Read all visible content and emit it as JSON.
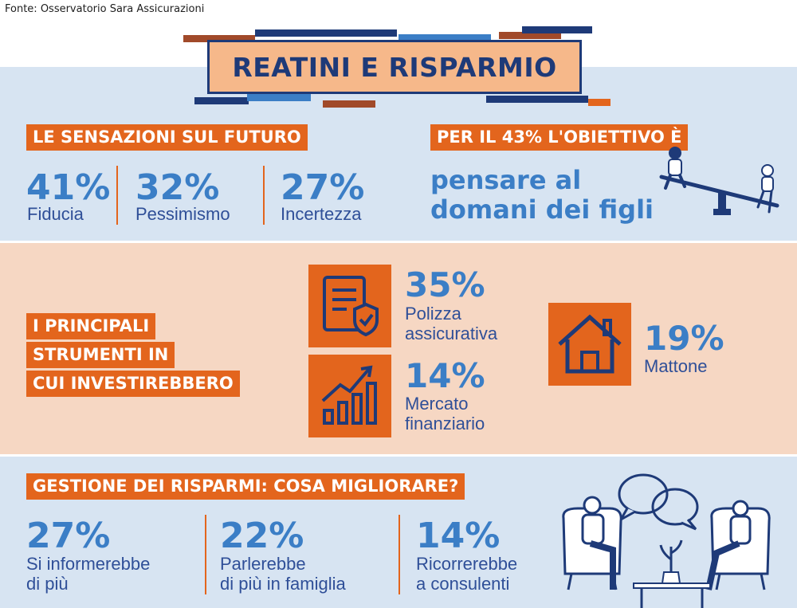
{
  "source": "Fonte: Osservatorio Sara Assicurazioni",
  "title": "REATINI E RISPARMIO",
  "sensazioni": {
    "heading": "LE SENSAZIONI SUL FUTURO",
    "items": [
      {
        "value": "41%",
        "label": "Fiducia"
      },
      {
        "value": "32%",
        "label": "Pessimismo"
      },
      {
        "value": "27%",
        "label": "Incertezza"
      }
    ]
  },
  "obiettivo": {
    "heading": "PER IL 43% L'OBIETTIVO È",
    "line1": "pensare al",
    "line2": "domani dei figli"
  },
  "strumenti": {
    "heading_lines": [
      "I PRINCIPALI",
      "STRUMENTI IN",
      "CUI INVESTIREBBERO"
    ],
    "items": [
      {
        "value": "35%",
        "line1": "Polizza",
        "line2": "assicurativa",
        "icon": "policy-shield-icon"
      },
      {
        "value": "14%",
        "line1": "Mercato",
        "line2": "finanziario",
        "icon": "growth-chart-icon"
      },
      {
        "value": "19%",
        "line1": "Mattone",
        "line2": "",
        "icon": "house-icon"
      }
    ]
  },
  "gestione": {
    "heading": "GESTIONE DEI RISPARMI: COSA MIGLIORARE?",
    "items": [
      {
        "value": "27%",
        "line1": "Si informerebbe",
        "line2": "di più"
      },
      {
        "value": "22%",
        "line1": "Parlerebbe",
        "line2": "di più in famiglia"
      },
      {
        "value": "14%",
        "line1": "Ricorrerebbe",
        "line2": "a consulenti"
      }
    ]
  },
  "colors": {
    "accent_orange": "#e3651d",
    "navy": "#1e3a78",
    "blue": "#3b7ec6",
    "light_blue_bg": "#d7e4f2",
    "peach_bg": "#f6d7c3",
    "title_bg": "#f6b88a"
  }
}
